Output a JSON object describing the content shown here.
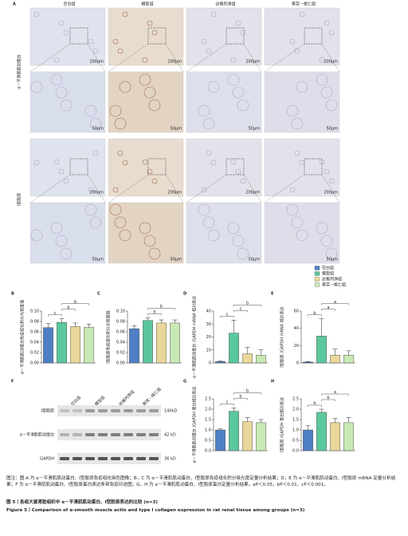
{
  "panel_a": {
    "label": "A",
    "columns": [
      "空白组",
      "模型组",
      "达格列净组",
      "黄芪－桃仁组"
    ],
    "rows": [
      "α－平滑肌肌动蛋白",
      "Ⅰ型胶原"
    ],
    "scale_bars": [
      "200μm",
      "50μm"
    ]
  },
  "legend": {
    "groups": [
      {
        "name": "空白组",
        "color": "#4f7fc4"
      },
      {
        "name": "模型组",
        "color": "#5cc79c"
      },
      {
        "name": "达格列净组",
        "color": "#e9d79b"
      },
      {
        "name": "黄芪－桃仁组",
        "color": "#c9e9b4"
      }
    ]
  },
  "chart_data": [
    {
      "panel": "B",
      "type": "bar",
      "ylabel": "α－平滑肌肌动蛋白免疫组化积分光密度值",
      "values": [
        0.068,
        0.078,
        0.07,
        0.069
      ],
      "errors": [
        0.008,
        0.007,
        0.007,
        0.006
      ],
      "ylim": [
        0,
        0.1
      ],
      "yticks": [
        {
          "value": 0,
          "label": "0.00"
        },
        0.02,
        0.04,
        0.06,
        0.08,
        {
          "value": 0.1,
          "label": "0.10"
        }
      ],
      "annotations": [
        "c",
        "b",
        "b"
      ]
    },
    {
      "panel": "C",
      "type": "bar",
      "ylabel": "Ⅰ型胶原免疫组化积分光密度值",
      "values": [
        0.066,
        0.082,
        0.077,
        0.077
      ],
      "errors": [
        0.006,
        0.005,
        0.006,
        0.006
      ],
      "ylim": [
        0,
        0.1
      ],
      "yticks": [
        {
          "value": 0,
          "label": "0.00"
        },
        0.02,
        0.04,
        0.06,
        0.08,
        {
          "value": 0.1,
          "label": "0.10"
        }
      ],
      "annotations": [
        "b",
        "b"
      ]
    },
    {
      "panel": "D",
      "type": "bar",
      "ylabel": "α－平滑肌肌动蛋白 /GAPDH mRNA 相对表达",
      "values": [
        1,
        23,
        7,
        6
      ],
      "errors": [
        0.5,
        10,
        5,
        4
      ],
      "ylim": [
        0,
        40
      ],
      "yticks": [
        0,
        10,
        20,
        30,
        40
      ],
      "annotations": [
        "c",
        "c",
        "b"
      ]
    },
    {
      "panel": "E",
      "type": "bar",
      "ylabel": "Ⅰ型胶原 /GAPDH mRNA 相对表达",
      "values": [
        1,
        31,
        9,
        9
      ],
      "errors": [
        0.5,
        20,
        7,
        5
      ],
      "ylim": [
        0,
        60
      ],
      "yticks": [
        0,
        20,
        40,
        60
      ],
      "annotations": [
        "b",
        "a",
        "a"
      ]
    },
    {
      "panel": "G",
      "type": "bar",
      "ylabel": "α－平滑肌肌动蛋白 /GAPDH 蛋白相对表达",
      "values": [
        1.0,
        1.9,
        1.4,
        1.35
      ],
      "errors": [
        0.05,
        0.15,
        0.2,
        0.15
      ],
      "ylim": [
        0,
        2.5
      ],
      "yticks": [
        {
          "value": 0,
          "label": "0.0"
        },
        0.5,
        {
          "value": 1,
          "label": "1.0"
        },
        1.5,
        {
          "value": 2,
          "label": "2.0"
        },
        2.5
      ],
      "annotations": [
        "c",
        "b",
        "b"
      ]
    },
    {
      "panel": "H",
      "type": "bar",
      "ylabel": "Ⅰ型胶原 /GAPDH 蛋白相对表达",
      "values": [
        1.0,
        1.85,
        1.35,
        1.35
      ],
      "errors": [
        0.2,
        0.15,
        0.2,
        0.25
      ],
      "ylim": [
        0,
        2.5
      ],
      "yticks": [
        {
          "value": 0,
          "label": "0.0"
        },
        0.5,
        {
          "value": 1,
          "label": "1.0"
        },
        1.5,
        {
          "value": 2,
          "label": "2.0"
        },
        2.5
      ],
      "annotations": [
        "b",
        "b",
        "a"
      ]
    }
  ],
  "western_blot": {
    "label": "F",
    "proteins": [
      "Ⅰ型胶原",
      "α－平滑肌肌动蛋白",
      "GAPDH"
    ],
    "sizes": [
      "140kD",
      "42 kD",
      "36 kD"
    ]
  },
  "caption": {
    "note": "图注：图 A 为 α－平滑肌肌动蛋白、Ⅰ型胶原免疫组化染色图像；B，C 为 α－平滑肌肌动蛋白、Ⅰ型胶原免疫组化积分吸光度定量分析结果；D，E 为 α－平滑肌肌动蛋白、Ⅰ型胶原 mRNA 定量分析结果；F 为 α－平滑肌肌动蛋白、Ⅰ型胶原蛋白表达条带免疫印迹图；G，H 为 α－平滑肌肌动蛋白、Ⅰ型胶原蛋白定量分析结果。aP＜0.05，bP＜0.01，cP＜0.001。",
    "title_cn": "图 5丨各组大鼠肾脏组织中 α－平滑肌肌动蛋白、Ⅰ型胶原表达的比较 (n=3)",
    "title_en": "Figure 5丨Comparison of α-smooth muscle actin and type I collagen expression in rat renal tissue among groups (n=3)"
  }
}
